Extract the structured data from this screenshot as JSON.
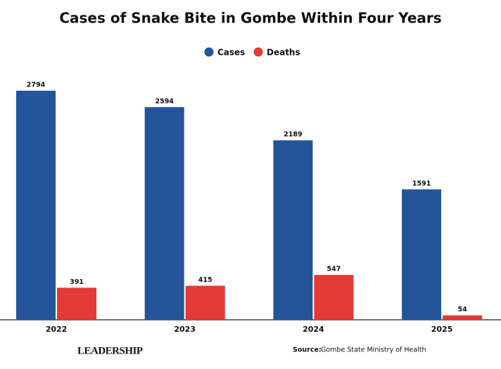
{
  "chart_data": {
    "type": "bar",
    "title": "Cases of Snake Bite in Gombe Within Four Years",
    "categories": [
      "2022",
      "2023",
      "2024",
      "2025"
    ],
    "series": [
      {
        "name": "Cases",
        "color": "#24549a",
        "values": [
          2794,
          2594,
          2189,
          1591
        ]
      },
      {
        "name": "Deaths",
        "color": "#e53935",
        "values": [
          391,
          415,
          547,
          54
        ]
      }
    ],
    "ylim": [
      0,
      3000
    ],
    "legend": "top",
    "logo": "LEADERSHIP",
    "source_label": "Source:",
    "source": "Gombe State Ministry of Health"
  }
}
